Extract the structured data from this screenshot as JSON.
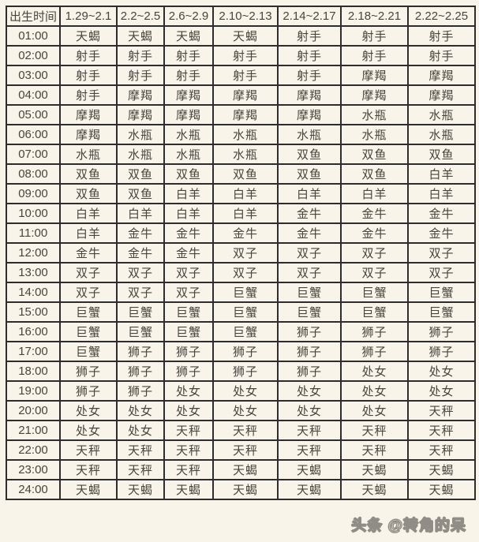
{
  "colors": {
    "bg": "#f8f4e9",
    "border": "#2d2d2d",
    "text": "#47453e",
    "watermark_fill": "#f6f3e9",
    "watermark_outline": "#8f8d85"
  },
  "watermark": {
    "text": "头条 @转角的呆"
  },
  "chart_data": {
    "type": "table",
    "columns": [
      "出生时间",
      "1.29~2.1",
      "2.2~2.5",
      "2.6~2.9",
      "2.10~2.13",
      "2.14~2.17",
      "2.18~2.21",
      "2.22~2.25"
    ],
    "rows": [
      {
        "time": "01:00",
        "signs": [
          "天蝎",
          "天蝎",
          "天蝎",
          "天蝎",
          "射手",
          "射手",
          "射手"
        ]
      },
      {
        "time": "02:00",
        "signs": [
          "射手",
          "射手",
          "射手",
          "射手",
          "射手",
          "射手",
          "射手"
        ]
      },
      {
        "time": "03:00",
        "signs": [
          "射手",
          "射手",
          "射手",
          "射手",
          "射手",
          "摩羯",
          "摩羯"
        ]
      },
      {
        "time": "04:00",
        "signs": [
          "射手",
          "摩羯",
          "摩羯",
          "摩羯",
          "摩羯",
          "摩羯",
          "摩羯"
        ]
      },
      {
        "time": "05:00",
        "signs": [
          "摩羯",
          "摩羯",
          "摩羯",
          "摩羯",
          "摩羯",
          "水瓶",
          "水瓶"
        ]
      },
      {
        "time": "06:00",
        "signs": [
          "摩羯",
          "水瓶",
          "水瓶",
          "水瓶",
          "水瓶",
          "水瓶",
          "水瓶"
        ]
      },
      {
        "time": "07:00",
        "signs": [
          "水瓶",
          "水瓶",
          "水瓶",
          "水瓶",
          "双鱼",
          "双鱼",
          "双鱼"
        ]
      },
      {
        "time": "08:00",
        "signs": [
          "双鱼",
          "双鱼",
          "双鱼",
          "双鱼",
          "双鱼",
          "双鱼",
          "白羊"
        ]
      },
      {
        "time": "09:00",
        "signs": [
          "双鱼",
          "双鱼",
          "白羊",
          "白羊",
          "白羊",
          "白羊",
          "白羊"
        ]
      },
      {
        "time": "10:00",
        "signs": [
          "白羊",
          "白羊",
          "白羊",
          "白羊",
          "金牛",
          "金牛",
          "金牛"
        ]
      },
      {
        "time": "11:00",
        "signs": [
          "白羊",
          "金牛",
          "金牛",
          "金牛",
          "金牛",
          "金牛",
          "金牛"
        ]
      },
      {
        "time": "12:00",
        "signs": [
          "金牛",
          "金牛",
          "金牛",
          "双子",
          "双子",
          "双子",
          "双子"
        ]
      },
      {
        "time": "13:00",
        "signs": [
          "双子",
          "双子",
          "双子",
          "双子",
          "双子",
          "双子",
          "双子"
        ]
      },
      {
        "time": "14:00",
        "signs": [
          "双子",
          "双子",
          "双子",
          "巨蟹",
          "巨蟹",
          "巨蟹",
          "巨蟹"
        ]
      },
      {
        "time": "15:00",
        "signs": [
          "巨蟹",
          "巨蟹",
          "巨蟹",
          "巨蟹",
          "巨蟹",
          "巨蟹",
          "巨蟹"
        ]
      },
      {
        "time": "16:00",
        "signs": [
          "巨蟹",
          "巨蟹",
          "巨蟹",
          "巨蟹",
          "狮子",
          "狮子",
          "狮子"
        ]
      },
      {
        "time": "17:00",
        "signs": [
          "巨蟹",
          "狮子",
          "狮子",
          "狮子",
          "狮子",
          "狮子",
          "狮子"
        ]
      },
      {
        "time": "18:00",
        "signs": [
          "狮子",
          "狮子",
          "狮子",
          "狮子",
          "狮子",
          "处女",
          "处女"
        ]
      },
      {
        "time": "19:00",
        "signs": [
          "狮子",
          "狮子",
          "处女",
          "处女",
          "处女",
          "处女",
          "处女"
        ]
      },
      {
        "time": "20:00",
        "signs": [
          "处女",
          "处女",
          "处女",
          "处女",
          "处女",
          "处女",
          "天秤"
        ]
      },
      {
        "time": "21:00",
        "signs": [
          "处女",
          "处女",
          "天秤",
          "天秤",
          "天秤",
          "天秤",
          "天秤"
        ]
      },
      {
        "time": "22:00",
        "signs": [
          "天秤",
          "天秤",
          "天秤",
          "天秤",
          "天秤",
          "天秤",
          "天秤"
        ]
      },
      {
        "time": "23:00",
        "signs": [
          "天秤",
          "天秤",
          "天秤",
          "天蝎",
          "天蝎",
          "天蝎",
          "天蝎"
        ]
      },
      {
        "time": "24:00",
        "signs": [
          "天蝎",
          "天蝎",
          "天蝎",
          "天蝎",
          "天蝎",
          "天蝎",
          "天蝎"
        ]
      }
    ]
  }
}
